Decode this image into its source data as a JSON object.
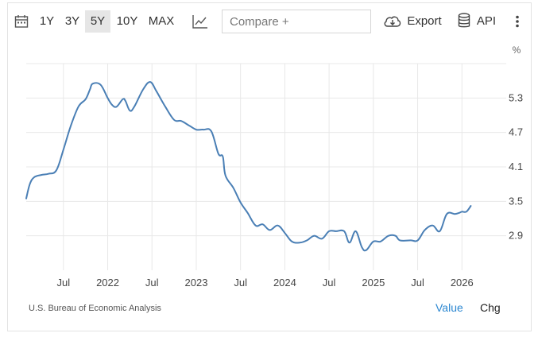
{
  "toolbar": {
    "ranges": [
      "1Y",
      "3Y",
      "5Y",
      "10Y",
      "MAX"
    ],
    "active_range": "5Y",
    "compare_placeholder": "Compare +",
    "export_label": "Export",
    "api_label": "API",
    "icons": {
      "calendar": "calendar-icon",
      "chart_type": "line-chart-icon",
      "export": "cloud-download-icon",
      "api": "database-icon",
      "more": "more-vertical-icon"
    }
  },
  "footer": {
    "source": "U.S. Bureau of Economic Analysis",
    "value_label": "Value",
    "chg_label": "Chg"
  },
  "colors": {
    "line": "#4a7fb5",
    "accent": "#2b87d1",
    "grid": "#e8e8e8"
  },
  "chart_data": {
    "type": "line",
    "unit_label": "%",
    "y_ticks": [
      2.9,
      3.5,
      4.1,
      4.7,
      5.3
    ],
    "ylim": [
      2.3,
      5.9
    ],
    "x_ticks": [
      {
        "label": "Jul",
        "t": 2021.5
      },
      {
        "label": "2022",
        "t": 2022.0
      },
      {
        "label": "Jul",
        "t": 2022.5
      },
      {
        "label": "2023",
        "t": 2023.0
      },
      {
        "label": "Jul",
        "t": 2023.5
      },
      {
        "label": "2024",
        "t": 2024.0
      },
      {
        "label": "Jul",
        "t": 2024.5
      },
      {
        "label": "2025",
        "t": 2025.0
      },
      {
        "label": "Jul",
        "t": 2025.5
      },
      {
        "label": "2026",
        "t": 2026.0
      }
    ],
    "xlim": [
      2021.08,
      2026.5
    ],
    "grid": true,
    "series": [
      {
        "points": [
          [
            2021.08,
            3.55
          ],
          [
            2021.12,
            3.8
          ],
          [
            2021.17,
            3.92
          ],
          [
            2021.25,
            3.96
          ],
          [
            2021.33,
            3.98
          ],
          [
            2021.42,
            4.04
          ],
          [
            2021.5,
            4.4
          ],
          [
            2021.58,
            4.8
          ],
          [
            2021.67,
            5.15
          ],
          [
            2021.75,
            5.28
          ],
          [
            2021.8,
            5.45
          ],
          [
            2021.83,
            5.55
          ],
          [
            2021.92,
            5.53
          ],
          [
            2022.0,
            5.3
          ],
          [
            2022.05,
            5.18
          ],
          [
            2022.1,
            5.15
          ],
          [
            2022.17,
            5.28
          ],
          [
            2022.2,
            5.25
          ],
          [
            2022.25,
            5.08
          ],
          [
            2022.3,
            5.15
          ],
          [
            2022.4,
            5.45
          ],
          [
            2022.48,
            5.58
          ],
          [
            2022.55,
            5.42
          ],
          [
            2022.65,
            5.15
          ],
          [
            2022.75,
            4.92
          ],
          [
            2022.83,
            4.9
          ],
          [
            2022.92,
            4.82
          ],
          [
            2023.0,
            4.75
          ],
          [
            2023.08,
            4.75
          ],
          [
            2023.17,
            4.72
          ],
          [
            2023.25,
            4.33
          ],
          [
            2023.3,
            4.28
          ],
          [
            2023.33,
            3.95
          ],
          [
            2023.42,
            3.73
          ],
          [
            2023.5,
            3.48
          ],
          [
            2023.58,
            3.3
          ],
          [
            2023.67,
            3.08
          ],
          [
            2023.75,
            3.1
          ],
          [
            2023.83,
            3.0
          ],
          [
            2023.92,
            3.08
          ],
          [
            2024.0,
            2.95
          ],
          [
            2024.08,
            2.8
          ],
          [
            2024.17,
            2.78
          ],
          [
            2024.25,
            2.82
          ],
          [
            2024.33,
            2.9
          ],
          [
            2024.42,
            2.85
          ],
          [
            2024.5,
            2.98
          ],
          [
            2024.58,
            2.98
          ],
          [
            2024.67,
            2.98
          ],
          [
            2024.73,
            2.78
          ],
          [
            2024.8,
            2.98
          ],
          [
            2024.87,
            2.7
          ],
          [
            2024.92,
            2.65
          ],
          [
            2025.0,
            2.8
          ],
          [
            2025.08,
            2.8
          ],
          [
            2025.17,
            2.9
          ],
          [
            2025.25,
            2.9
          ],
          [
            2025.3,
            2.82
          ],
          [
            2025.42,
            2.82
          ],
          [
            2025.5,
            2.82
          ],
          [
            2025.58,
            3.0
          ],
          [
            2025.67,
            3.08
          ],
          [
            2025.75,
            2.98
          ],
          [
            2025.83,
            3.28
          ],
          [
            2025.92,
            3.28
          ],
          [
            2025.97,
            3.3
          ],
          [
            2026.0,
            3.32
          ],
          [
            2026.05,
            3.32
          ],
          [
            2026.1,
            3.42
          ]
        ]
      }
    ]
  }
}
